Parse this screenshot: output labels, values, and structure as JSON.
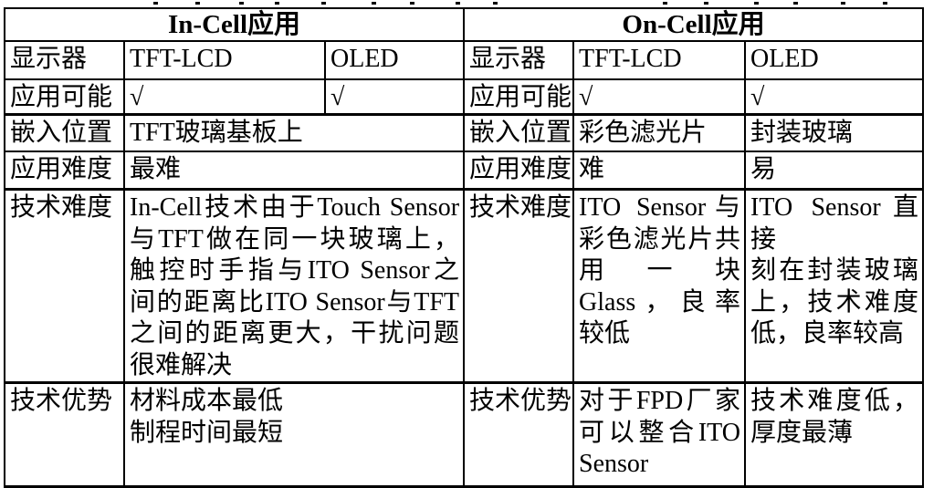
{
  "colors": {
    "border": "#000000",
    "background": "#ffffff",
    "text": "#000000"
  },
  "check_mark": "√",
  "table": {
    "header": {
      "incell": "In-Cell应用",
      "oncell": "On-Cell应用"
    },
    "display_row": {
      "label_left": "显示器",
      "incell_tftlcd": "TFT-LCD",
      "incell_oled": "OLED",
      "label_right": "显示器",
      "oncell_tftlcd": "TFT-LCD",
      "oncell_oled": "OLED"
    },
    "possible_row": {
      "label_left": "应用可能",
      "incell_tftlcd": "√",
      "incell_oled": "√",
      "label_right": "应用可能",
      "oncell_tftlcd": "√",
      "oncell_oled": "√"
    },
    "position_row": {
      "label_left": "嵌入位置",
      "incell": "TFT玻璃基板上",
      "label_right": "嵌入位置",
      "oncell_tftlcd": "彩色滤光片",
      "oncell_oled": "封装玻璃"
    },
    "app_difficulty_row": {
      "label_left": "应用难度",
      "incell": "最难",
      "label_right": "应用难度",
      "oncell_tftlcd": "难",
      "oncell_oled": "易"
    },
    "tech_difficulty_row": {
      "label_left": "技术难度",
      "incell_text": "In-Cell技术由于Touch Sensor与TFT做在同一块玻璃上，触控时手指与ITO Sensor之间的距离比ITO Sensor与TFT之间的距离更大，干扰问题很难解决",
      "incell_lines": [
        "In-Cell技术由于Touch Sensor",
        "与TFT做在同一块玻璃上，",
        "触控时手指与ITO Sensor之",
        "间的距离比ITO Sensor与TFT",
        "之间的距离更大，干扰问题",
        "很难解决"
      ],
      "label_right": "技术难度",
      "oncell_tftlcd_text": "ITO Sensor与彩色滤光片共用一块Glass，良率较低",
      "oncell_tftlcd_lines": [
        "ITO Sensor与",
        "彩色滤光片共",
        "用一块",
        "Glass，良率",
        "较低"
      ],
      "oncell_oled_text": "ITO Sensor直接刻在封装玻璃上，技术难度低，良率较高",
      "oncell_oled_lines": [
        "ITO Sensor直接",
        "刻在封装玻璃",
        "上，技术难度",
        "低，良率较高"
      ]
    },
    "tech_advantage_row": {
      "label_left": "技术优势",
      "incell_lines": [
        "材料成本最低",
        "制程时间最短"
      ],
      "label_right": "技术优势",
      "oncell_tftlcd_text": "对于FPD厂家可以整合ITO Sensor",
      "oncell_tftlcd_lines": [
        "对于FPD厂家",
        "可以整合ITO",
        "Sensor"
      ],
      "oncell_oled_text": "技术难度低，厚度最薄",
      "oncell_oled_lines": [
        "技术难度低，",
        "厚度最薄"
      ]
    }
  }
}
